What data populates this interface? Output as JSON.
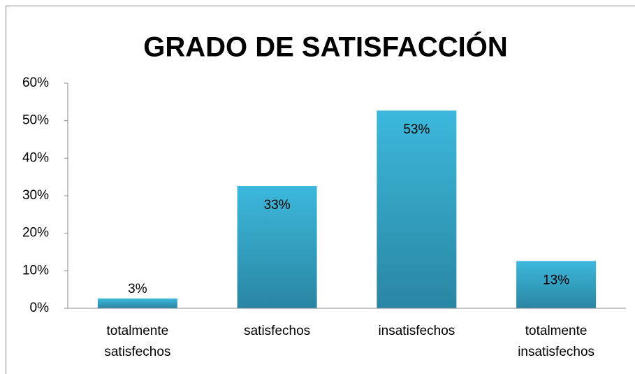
{
  "chart_data": {
    "type": "bar",
    "title": "GRADO DE SATISFACCIÓN",
    "categories": [
      "totalmente satisfechos",
      "satisfechos",
      "insatisfechos",
      "totalmente insatisfechos"
    ],
    "values": [
      2.6,
      32.6,
      52.7,
      12.6
    ],
    "value_labels": [
      "3%",
      "33%",
      "53%",
      "13%"
    ],
    "color": "#31a3c6",
    "ylim": [
      0,
      60
    ],
    "yticks": [
      {
        "value": 0,
        "label": "0%"
      },
      {
        "value": 10,
        "label": "10%"
      },
      {
        "value": 20,
        "label": "20%"
      },
      {
        "value": 30,
        "label": "30%"
      },
      {
        "value": 40,
        "label": "40%"
      },
      {
        "value": 50,
        "label": "50%"
      },
      {
        "value": 60,
        "label": "60%"
      }
    ],
    "grid": false
  }
}
